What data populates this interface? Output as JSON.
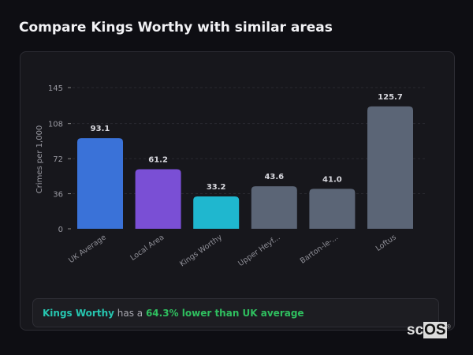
{
  "page": {
    "title": "Compare Kings Worthy with similar areas"
  },
  "note": {
    "subject": "Kings Worthy",
    "middle": " has a ",
    "highlight": "64.3% lower than UK average"
  },
  "logo": {
    "text": "scOS"
  },
  "chart_data": {
    "type": "bar",
    "title": "",
    "ylabel": "Crimes per 1,000",
    "xlabel": "",
    "ylim": [
      0,
      145
    ],
    "yticks": [
      0,
      36,
      72,
      108,
      145
    ],
    "grid": true,
    "categories": [
      "UK Average",
      "Local Area",
      "Kings Worthy",
      "Upper Heyf...",
      "Barton-le-...",
      "Loftus"
    ],
    "values": [
      93.1,
      61.2,
      33.2,
      43.6,
      41.0,
      125.7
    ],
    "colors": [
      "#3a72d8",
      "#7a4fd5",
      "#1fb7cf",
      "#5b6576",
      "#5b6576",
      "#5b6576"
    ]
  }
}
